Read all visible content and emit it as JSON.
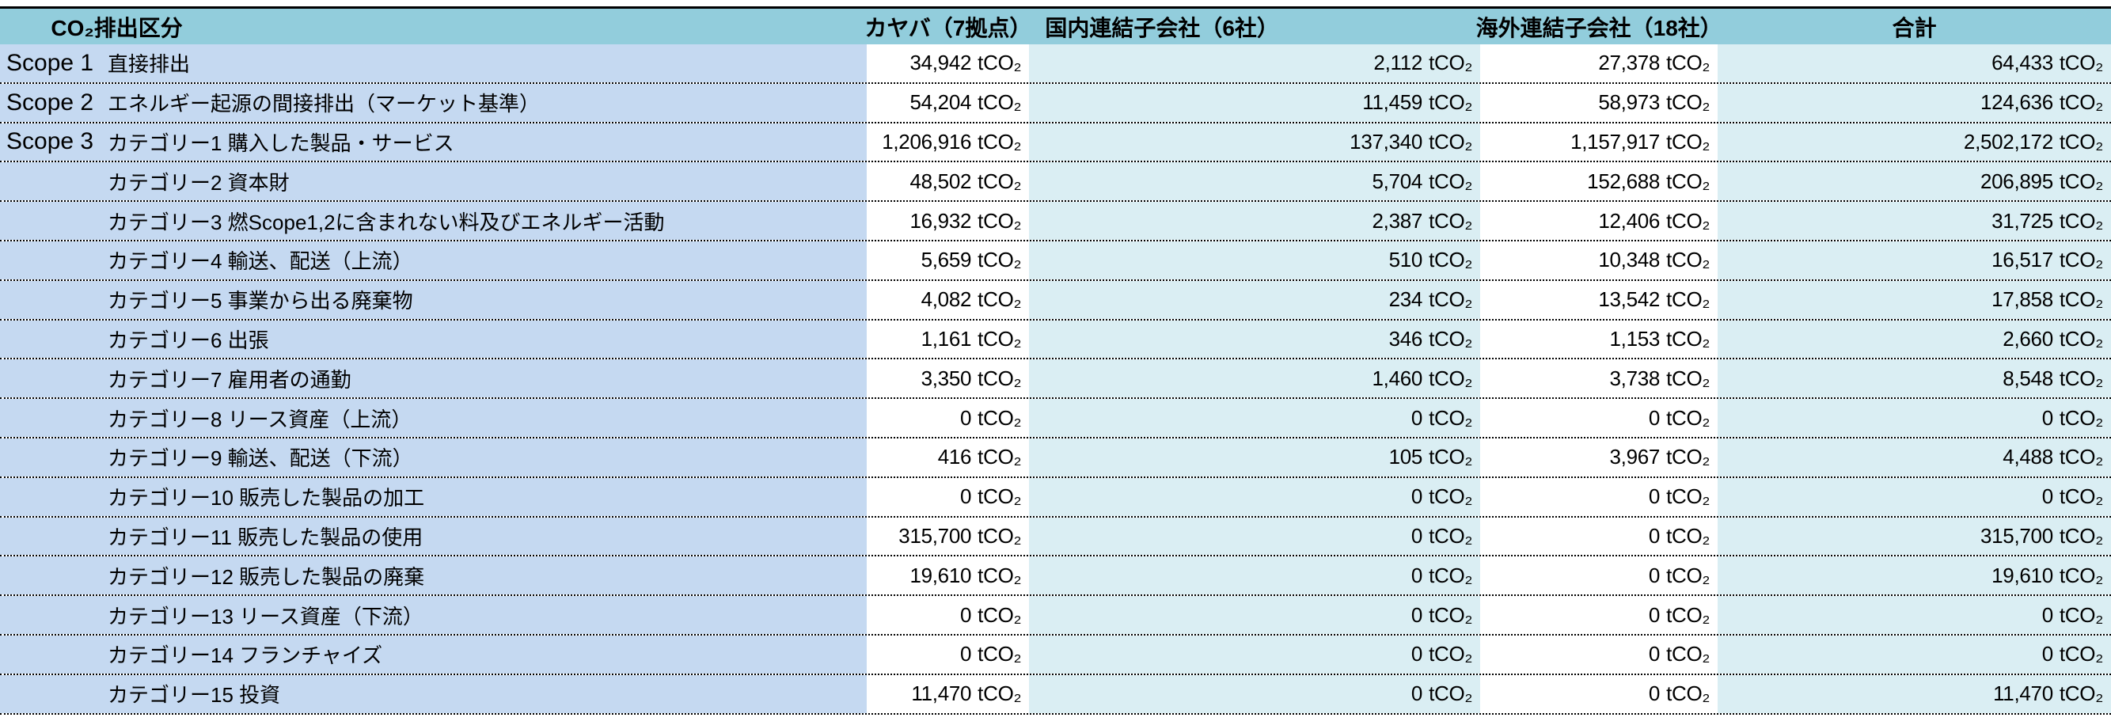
{
  "table": {
    "unit": "tCO₂",
    "headers": {
      "category": "CO₂排出区分",
      "kayaba": "カヤバ（7拠点）",
      "domestic": "国内連結子会社（6社）",
      "overseas": "海外連結子会社（18社）",
      "total": "合計"
    },
    "rows": [
      {
        "scope": "Scope 1",
        "label": "直接排出",
        "values": [
          "34,942",
          "2,112",
          "27,378",
          "64,433"
        ]
      },
      {
        "scope": "Scope 2",
        "label": "エネルギー起源の間接排出（マーケット基準）",
        "values": [
          "54,204",
          "11,459",
          "58,973",
          "124,636"
        ]
      },
      {
        "scope": "Scope 3",
        "label": "カテゴリー1 購入した製品・サービス",
        "values": [
          "1,206,916",
          "137,340",
          "1,157,917",
          "2,502,172"
        ]
      },
      {
        "scope": "",
        "label": "カテゴリー2 資本財",
        "values": [
          "48,502",
          "5,704",
          "152,688",
          "206,895"
        ]
      },
      {
        "scope": "",
        "label": "カテゴリー3 燃Scope1,2に含まれない料及びエネルギー活動",
        "values": [
          "16,932",
          "2,387",
          "12,406",
          "31,725"
        ]
      },
      {
        "scope": "",
        "label": "カテゴリー4 輸送、配送（上流）",
        "values": [
          "5,659",
          "510",
          "10,348",
          "16,517"
        ]
      },
      {
        "scope": "",
        "label": "カテゴリー5 事業から出る廃棄物",
        "values": [
          "4,082",
          "234",
          "13,542",
          "17,858"
        ]
      },
      {
        "scope": "",
        "label": "カテゴリー6 出張",
        "values": [
          "1,161",
          "346",
          "1,153",
          "2,660"
        ]
      },
      {
        "scope": "",
        "label": "カテゴリー7 雇用者の通勤",
        "values": [
          "3,350",
          "1,460",
          "3,738",
          "8,548"
        ]
      },
      {
        "scope": "",
        "label": "カテゴリー8 リース資産（上流）",
        "values": [
          "0",
          "0",
          "0",
          "0"
        ]
      },
      {
        "scope": "",
        "label": "カテゴリー9 輸送、配送（下流）",
        "values": [
          "416",
          "105",
          "3,967",
          "4,488"
        ]
      },
      {
        "scope": "",
        "label": "カテゴリー10 販売した製品の加工",
        "values": [
          "0",
          "0",
          "0",
          "0"
        ]
      },
      {
        "scope": "",
        "label": "カテゴリー11 販売した製品の使用",
        "values": [
          "315,700",
          "0",
          "0",
          "315,700"
        ]
      },
      {
        "scope": "",
        "label": "カテゴリー12 販売した製品の廃棄",
        "values": [
          "19,610",
          "0",
          "0",
          "19,610"
        ]
      },
      {
        "scope": "",
        "label": "カテゴリー13 リース資産（下流）",
        "values": [
          "0",
          "0",
          "0",
          "0"
        ]
      },
      {
        "scope": "",
        "label": "カテゴリー14 フランチャイズ",
        "values": [
          "0",
          "0",
          "0",
          "0"
        ]
      },
      {
        "scope": "",
        "label": "カテゴリー15 投資",
        "values": [
          "11,470",
          "0",
          "0",
          "11,470"
        ]
      }
    ]
  },
  "colors": {
    "header_bg": "#92CDDC",
    "label_col_bg": "#C5D9F1",
    "alt_col_bg": "#DAEEF3",
    "white_col_bg": "#FFFFFF",
    "border": "#000000"
  },
  "chart_data": {
    "type": "table",
    "title": "CO₂排出区分",
    "unit": "tCO₂",
    "columns": [
      "CO₂排出区分",
      "カヤバ（7拠点）",
      "国内連結子会社（6社）",
      "海外連結子会社（18社）",
      "合計"
    ],
    "rows": [
      [
        "Scope 1 直接排出",
        34942,
        2112,
        27378,
        64433
      ],
      [
        "Scope 2 エネルギー起源の間接排出（マーケット基準）",
        54204,
        11459,
        58973,
        124636
      ],
      [
        "Scope 3 カテゴリー1 購入した製品・サービス",
        1206916,
        137340,
        1157917,
        2502172
      ],
      [
        "カテゴリー2 資本財",
        48502,
        5704,
        152688,
        206895
      ],
      [
        "カテゴリー3 燃Scope1,2に含まれない料及びエネルギー活動",
        16932,
        2387,
        12406,
        31725
      ],
      [
        "カテゴリー4 輸送、配送（上流）",
        5659,
        510,
        10348,
        16517
      ],
      [
        "カテゴリー5 事業から出る廃棄物",
        4082,
        234,
        13542,
        17858
      ],
      [
        "カテゴリー6 出張",
        1161,
        346,
        1153,
        2660
      ],
      [
        "カテゴリー7 雇用者の通勤",
        3350,
        1460,
        3738,
        8548
      ],
      [
        "カテゴリー8 リース資産（上流）",
        0,
        0,
        0,
        0
      ],
      [
        "カテゴリー9 輸送、配送（下流）",
        416,
        105,
        3967,
        4488
      ],
      [
        "カテゴリー10 販売した製品の加工",
        0,
        0,
        0,
        0
      ],
      [
        "カテゴリー11 販売した製品の使用",
        315700,
        0,
        0,
        315700
      ],
      [
        "カテゴリー12 販売した製品の廃棄",
        19610,
        0,
        0,
        19610
      ],
      [
        "カテゴリー13 リース資産（下流）",
        0,
        0,
        0,
        0
      ],
      [
        "カテゴリー14 フランチャイズ",
        0,
        0,
        0,
        0
      ],
      [
        "カテゴリー15 投資",
        11470,
        0,
        0,
        11470
      ]
    ]
  }
}
